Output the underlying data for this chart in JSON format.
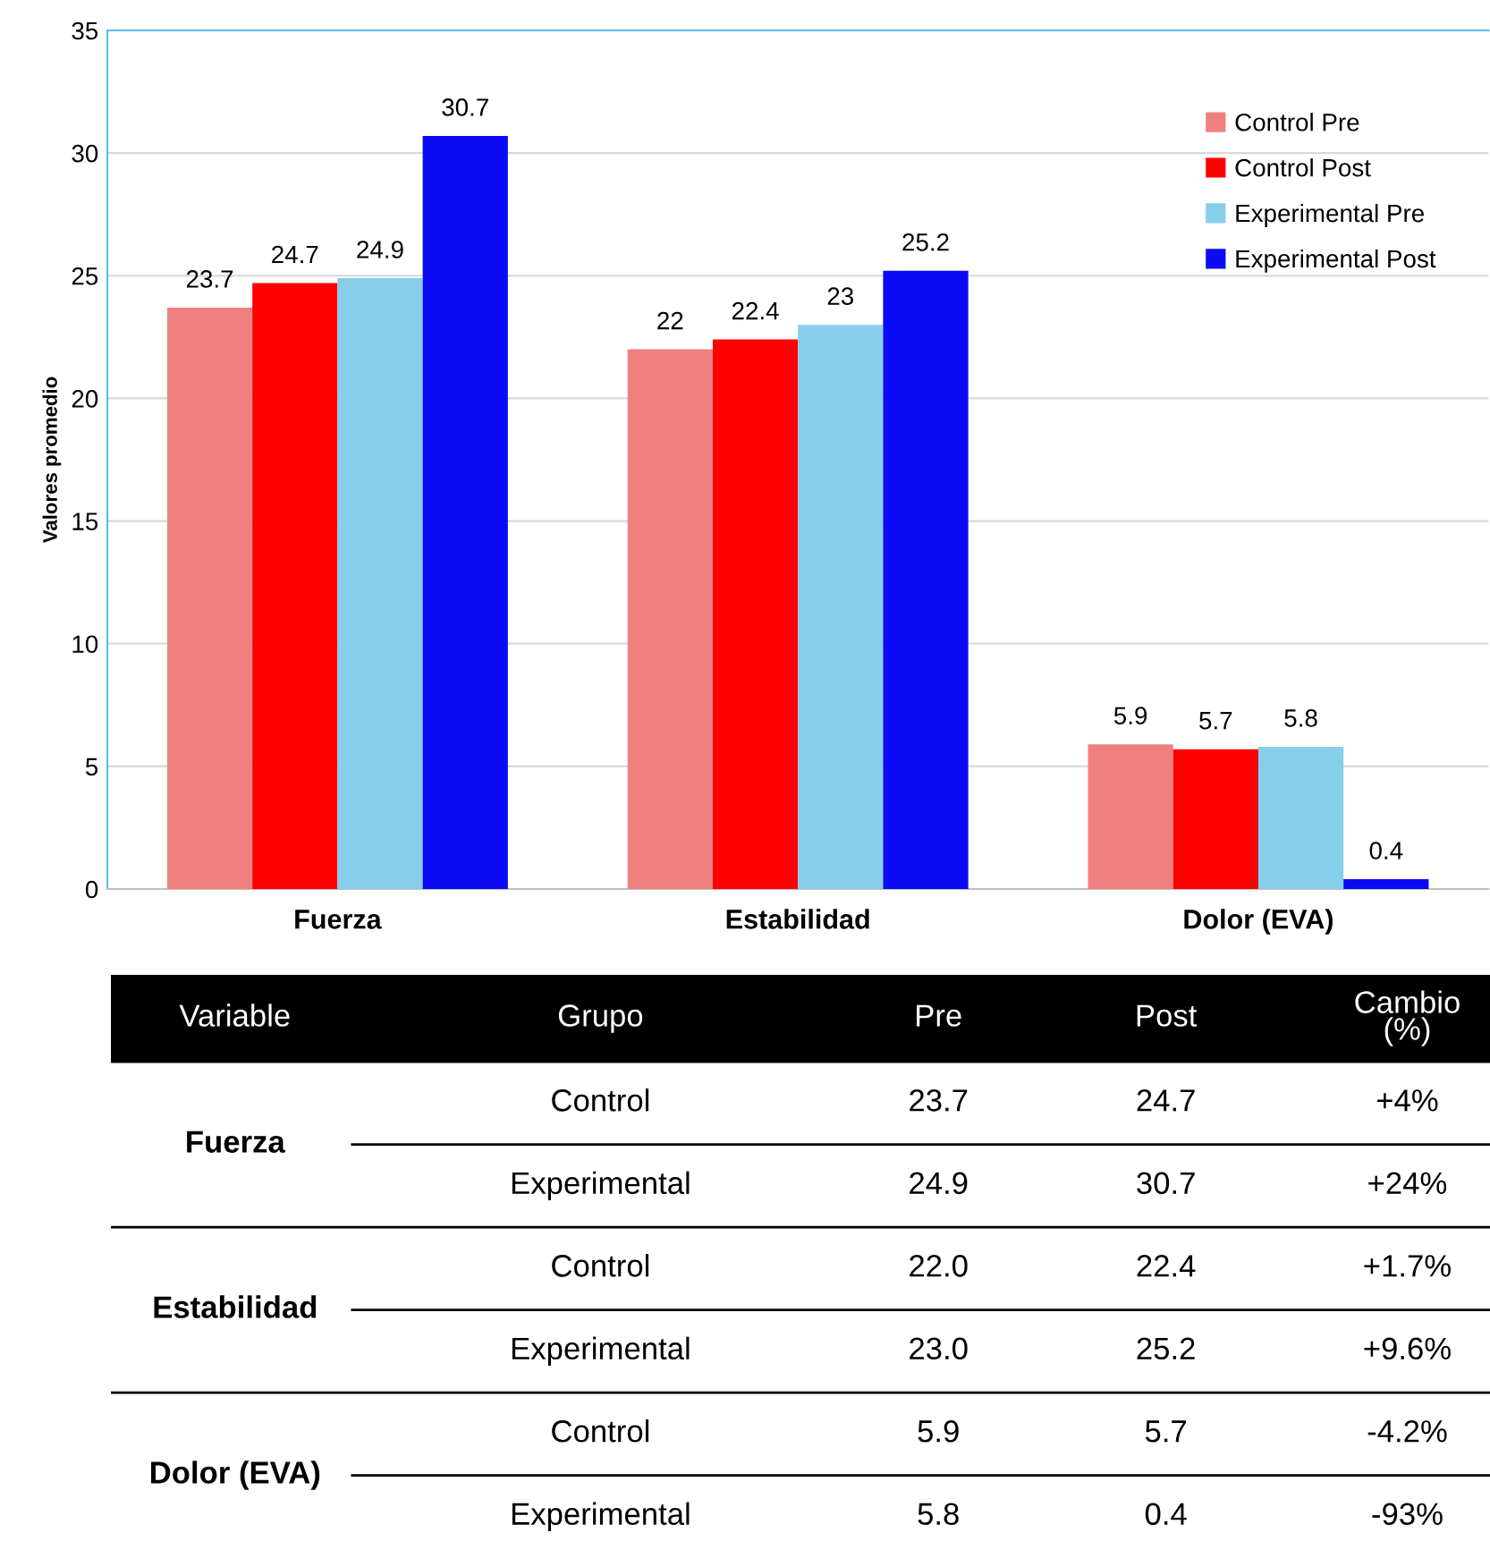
{
  "chart_data": [
    {
      "type": "bar",
      "ylabel": "Valores promedio",
      "categories": [
        "Fuerza",
        "Estabilidad",
        "Dolor (EVA)"
      ],
      "series": [
        {
          "name": "Control Pre",
          "color": "#f08080",
          "values": [
            23.7,
            22,
            5.9
          ]
        },
        {
          "name": "Control Post",
          "color": "#ff0000",
          "values": [
            24.7,
            22.4,
            5.7
          ]
        },
        {
          "name": "Experimental Pre",
          "color": "#87ceeb",
          "values": [
            24.9,
            23,
            5.8
          ]
        },
        {
          "name": "Experimental Post",
          "color": "#0b0bf5",
          "values": [
            30.7,
            25.2,
            0.4
          ]
        }
      ],
      "ylim": [
        0,
        35
      ],
      "yticks": [
        0,
        5,
        10,
        15,
        20,
        25,
        30,
        35
      ],
      "grid": "y",
      "legend": "top right",
      "data_labels": true
    },
    {
      "type": "other",
      "categories": [
        "Variable",
        "Grupo",
        "Pre",
        "Post",
        "Cambio\n(%)"
      ],
      "cell_labels": [
        [
          "Fuerza",
          "Control",
          "23.7",
          "24.7",
          "+4%"
        ],
        [
          null,
          "Experimental",
          "24.9",
          "30.7",
          "+24%"
        ],
        [
          "Estabilidad",
          "Control",
          "22.0",
          "22.4",
          "+1.7%"
        ],
        [
          null,
          "Experimental",
          "23.0",
          "25.2",
          "+9.6%"
        ],
        [
          "Dolor (EVA)",
          "Control",
          "5.9",
          "5.7",
          "-4.2%"
        ],
        [
          null,
          "Experimental",
          "5.8",
          "0.4",
          "-93%"
        ]
      ]
    }
  ]
}
